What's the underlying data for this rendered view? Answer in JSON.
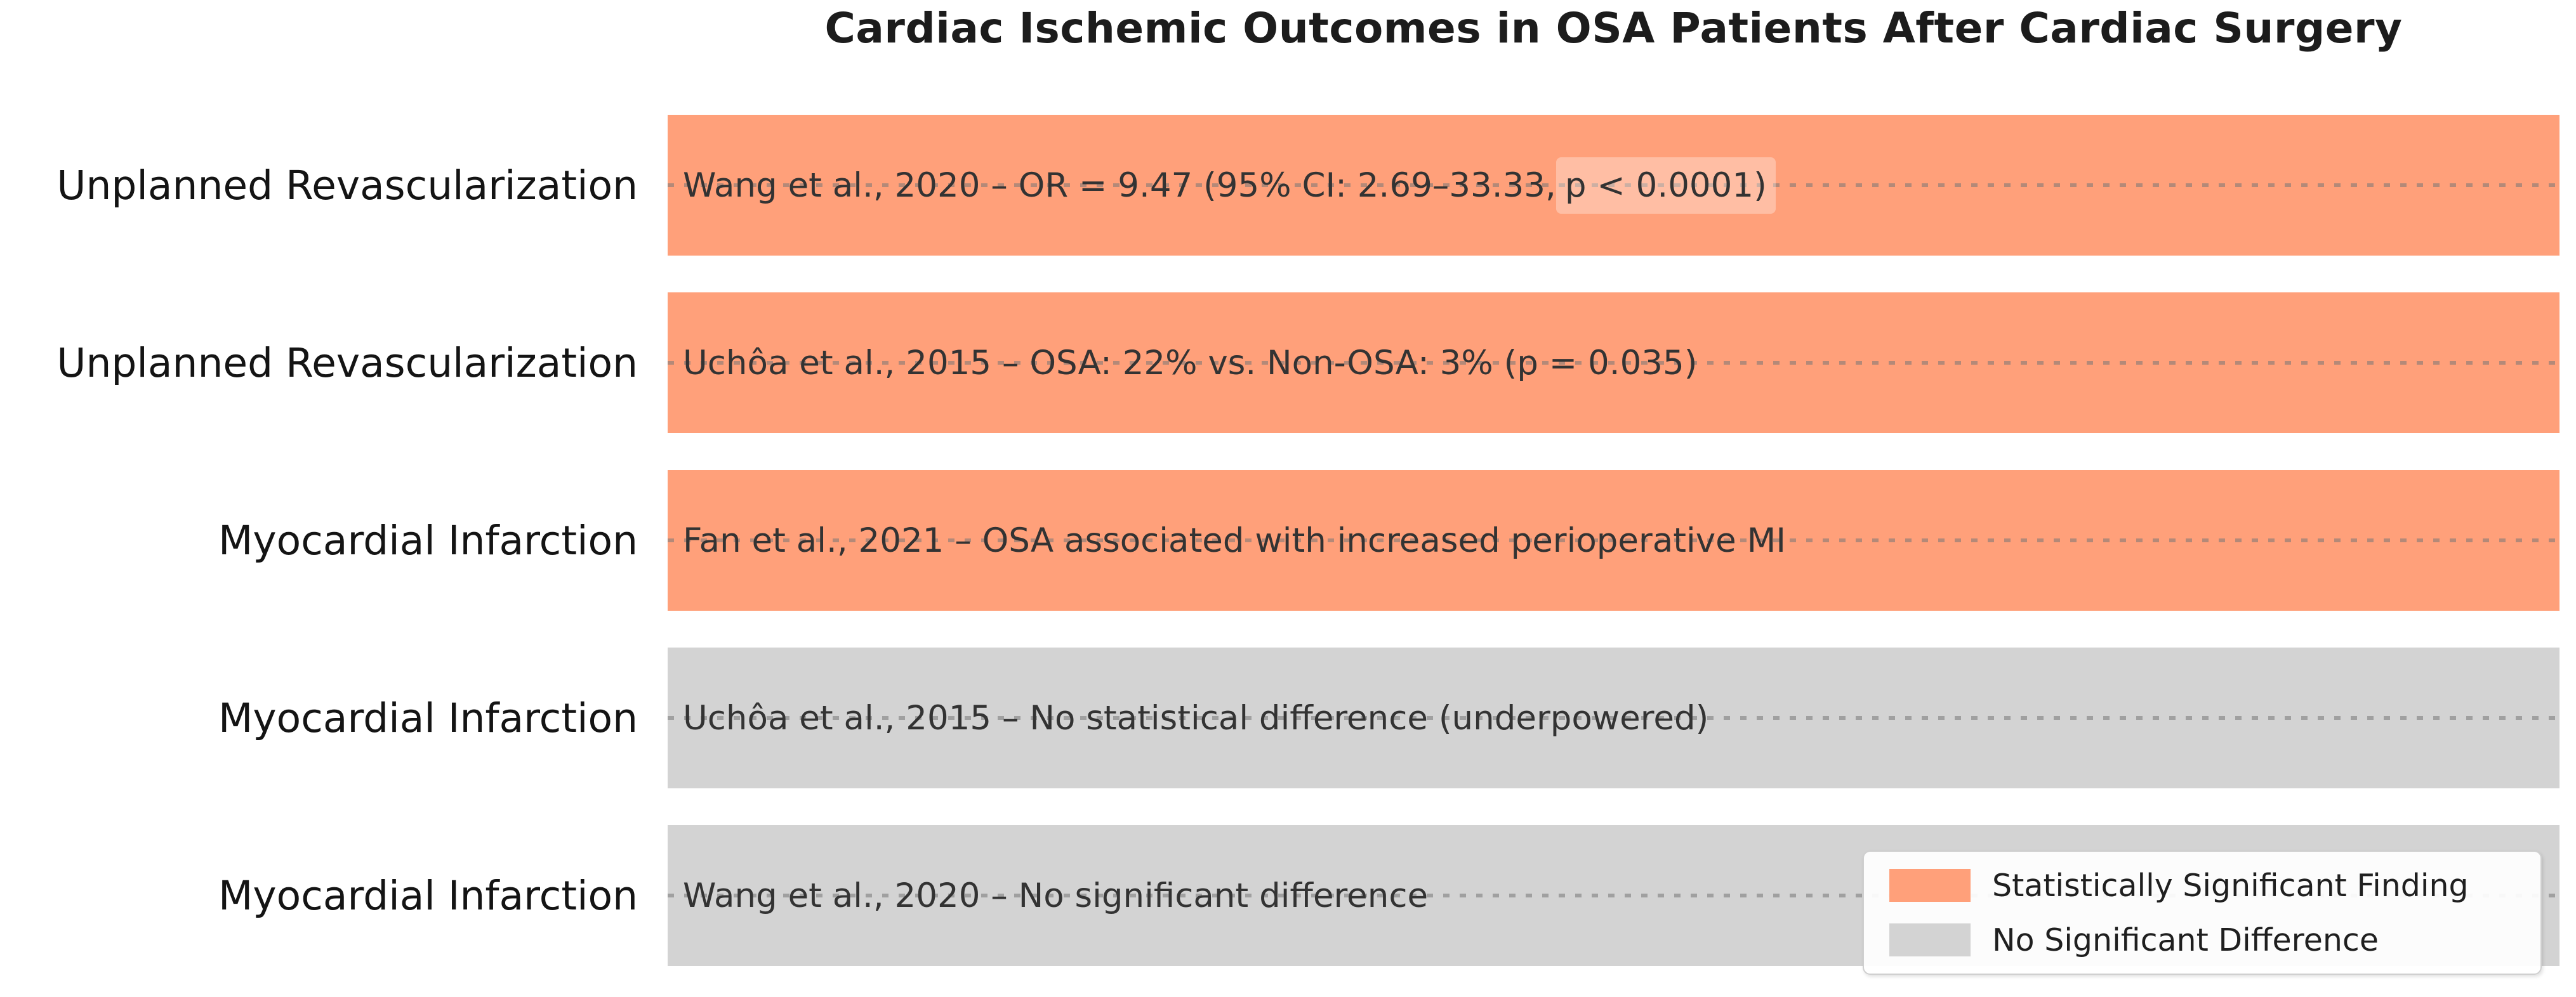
{
  "title": "Cardiac Ischemic Outcomes in OSA Patients After Cardiac Surgery",
  "colors": {
    "significant": "#FFA07A",
    "not_significant": "#D3D3D3",
    "grid_dots": "#767676",
    "title_text": "#1c1c1c",
    "annotation_text": "#333333"
  },
  "rows": [
    {
      "outcome": "Unplanned Revascularization",
      "annotation_prefix": "Wang et al., 2020 – OR = 9.47 (95% CI: 2.69–33.33, ",
      "annotation_highlight": "p < 0.0001)",
      "significant": true
    },
    {
      "outcome": "Unplanned Revascularization",
      "annotation_prefix": "Uchôa et al., 2015 – OSA: 22% vs. Non-OSA: 3% (p = 0.035)",
      "annotation_highlight": "",
      "significant": true
    },
    {
      "outcome": "Myocardial Infarction",
      "annotation_prefix": "Fan et al., 2021 – OSA associated with increased perioperative MI",
      "annotation_highlight": "",
      "significant": true
    },
    {
      "outcome": "Myocardial Infarction",
      "annotation_prefix": "Uchôa et al., 2015 – No statistical difference (underpowered)",
      "annotation_highlight": "",
      "significant": false
    },
    {
      "outcome": "Myocardial Infarction",
      "annotation_prefix": "Wang et al., 2020 – No significant difference",
      "annotation_highlight": "",
      "significant": false
    }
  ],
  "legend": {
    "items": [
      {
        "label": "Statistically Significant Finding",
        "color_key": "significant"
      },
      {
        "label": "No Significant Difference",
        "color_key": "not_significant"
      }
    ]
  },
  "chart_data": {
    "type": "bar",
    "orientation": "horizontal",
    "title": "Cardiac Ischemic Outcomes in OSA Patients After Cardiac Surgery",
    "categories": [
      "Unplanned Revascularization",
      "Unplanned Revascularization",
      "Myocardial Infarction",
      "Myocardial Infarction",
      "Myocardial Infarction"
    ],
    "values": [
      1,
      1,
      1,
      1,
      1
    ],
    "value_meaning": "qualitative equal-length significance bars; no numeric x-axis shown",
    "bar_annotations": [
      "Wang et al., 2020 – OR = 9.47 (95% CI: 2.69–33.33, p < 0.0001)",
      "Uchôa et al., 2015 – OSA: 22% vs. Non-OSA: 3% (p = 0.035)",
      "Fan et al., 2021 – OSA associated with increased perioperative MI",
      "Uchôa et al., 2015 – No statistical difference (underpowered)",
      "Wang et al., 2020 – No significant difference"
    ],
    "bar_significant": [
      true,
      true,
      true,
      false,
      false
    ],
    "series": [
      {
        "name": "Statistically Significant Finding",
        "color": "#FFA07A",
        "row_indices": [
          0,
          1,
          2
        ]
      },
      {
        "name": "No Significant Difference",
        "color": "#D3D3D3",
        "row_indices": [
          3,
          4
        ]
      }
    ],
    "legend": [
      "Statistically Significant Finding",
      "No Significant Difference"
    ],
    "legend_position": "lower right",
    "grid": "dotted gray horizontal leader line through the vertical center of each bar",
    "axes": "no visible axis lines, ticks, or tick labels",
    "xlabel": "",
    "ylabel": ""
  }
}
